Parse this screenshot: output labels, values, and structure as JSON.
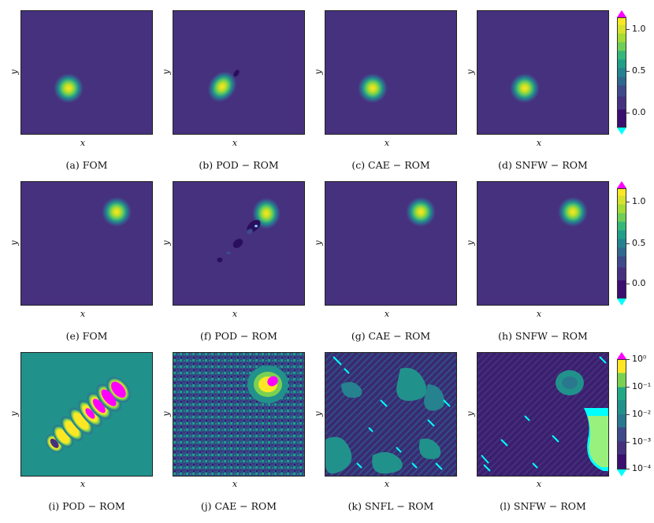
{
  "axes": {
    "x_label": "x",
    "y_label": "y"
  },
  "rows": [
    {
      "captions": [
        "(a) FOM",
        "(b) POD − ROM",
        "(c) CAE − ROM",
        "(d) SNFW − ROM"
      ],
      "colorbar_ticks": [
        "1.0",
        "0.5",
        "0.0"
      ]
    },
    {
      "captions": [
        "(e) FOM",
        "(f) POD − ROM",
        "(g) CAE − ROM",
        "(h) SNFW − ROM"
      ],
      "colorbar_ticks": [
        "1.0",
        "0.5",
        "0.0"
      ]
    },
    {
      "captions": [
        "(i) POD − ROM",
        "(j) CAE − ROM",
        "(k) SNFL − ROM",
        "(l) SNFW − ROM"
      ],
      "colorbar_ticks": [
        "10⁰",
        "10⁻¹",
        "10⁻²",
        "10⁻³",
        "10⁻⁴"
      ]
    }
  ],
  "colors": {
    "background": "#46317e",
    "colormap": [
      "#3b0f70",
      "#46317e",
      "#3a5a8c",
      "#2a788e",
      "#21918c",
      "#22a884",
      "#44bf70",
      "#7ad151",
      "#bddf26",
      "#fde725"
    ],
    "over": "#ff00ff",
    "under": "#00ffff"
  }
}
